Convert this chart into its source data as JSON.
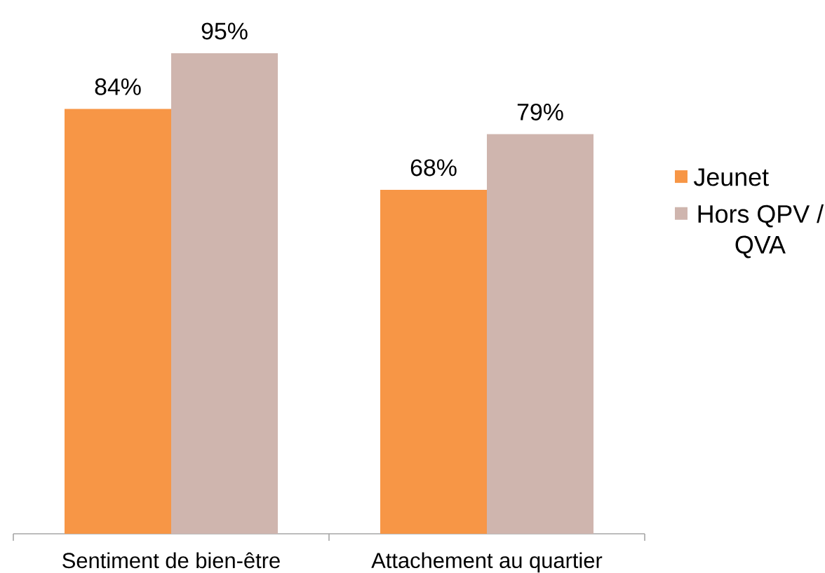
{
  "chart_data": {
    "type": "bar",
    "categories": [
      "Sentiment de bien-être",
      "Attachement au quartier"
    ],
    "series": [
      {
        "name": "Jeunet",
        "color": "#f79646",
        "values": [
          84,
          68
        ],
        "value_labels": [
          "84%",
          "68%"
        ]
      },
      {
        "name": "Hors QPV / QVA",
        "color": "#cfb5ae",
        "values": [
          95,
          79
        ],
        "value_labels": [
          "95%",
          "79%"
        ]
      }
    ],
    "legend": "right",
    "tick_labels": "x"
  }
}
